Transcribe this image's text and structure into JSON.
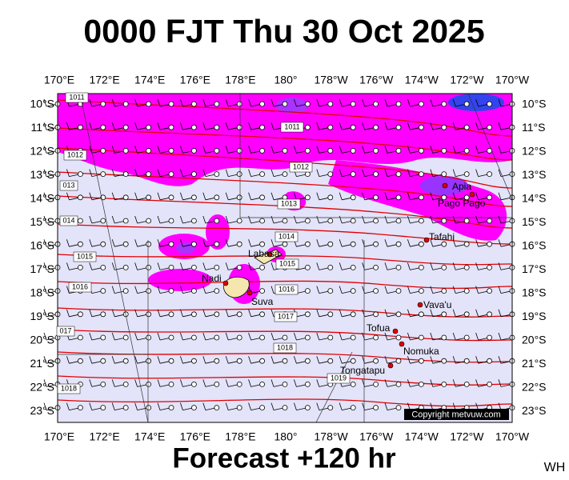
{
  "title": "0000 FJT Thu 30 Oct 2025",
  "footer": "Forecast +120 hr",
  "initials": "WH",
  "copyright": "Copyright metvuw.com",
  "map": {
    "longitude_labels": [
      "170°E",
      "172°E",
      "174°E",
      "176°E",
      "178°E",
      "180°",
      "178°W",
      "176°W",
      "174°W",
      "172°W",
      "170°W"
    ],
    "latitude_labels": [
      "10°S",
      "11°S",
      "12°S",
      "13°S",
      "14°S",
      "15°S",
      "16°S",
      "17°S",
      "18°S",
      "19°S",
      "20°S",
      "21°S",
      "22°S",
      "23°S"
    ],
    "places": [
      "Labasa",
      "Nadi",
      "Suva",
      "Apia",
      "Pago Pago",
      "Tafahi",
      "Vava'u",
      "Tofua",
      "Nomuka",
      "Tongatapu"
    ],
    "isobar_labels": [
      "1011",
      "1011",
      "1012",
      "1012",
      "013",
      "1013",
      "014",
      "1014",
      "1015",
      "1015",
      "1016",
      "1016",
      "1017",
      "017",
      "1018",
      "1018",
      "1019"
    ]
  }
}
